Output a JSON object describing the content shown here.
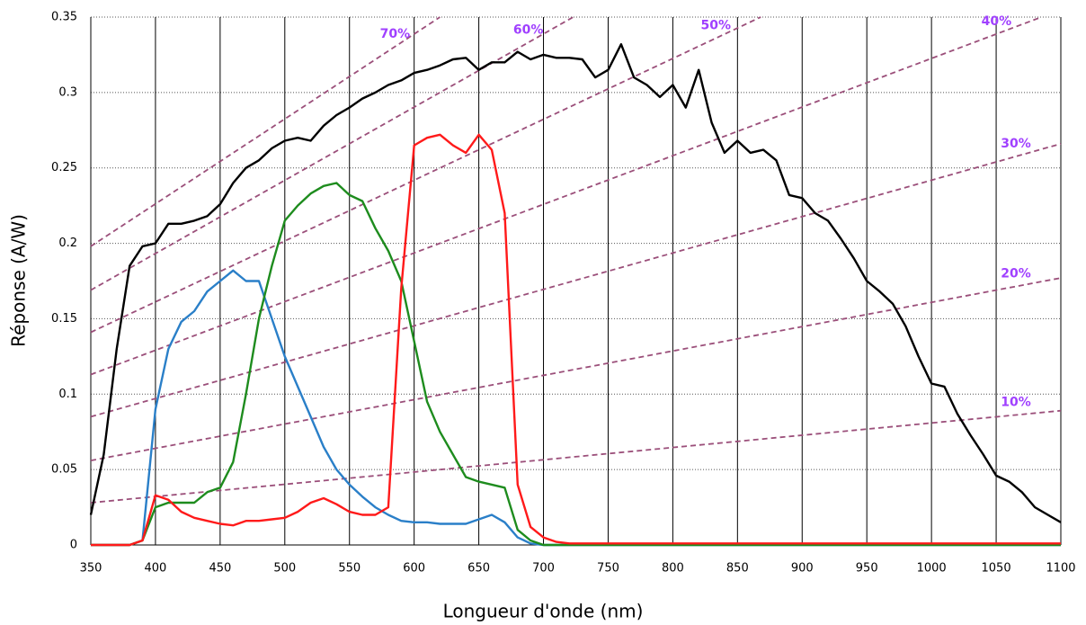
{
  "chart_data": {
    "type": "line",
    "x_label": "Longueur d'onde (nm)",
    "y_label": "Réponse (A/W)",
    "x": [
      350,
      360,
      370,
      380,
      390,
      400,
      410,
      420,
      430,
      440,
      450,
      460,
      470,
      480,
      490,
      500,
      510,
      520,
      530,
      540,
      550,
      560,
      570,
      580,
      590,
      600,
      610,
      620,
      630,
      640,
      650,
      660,
      670,
      680,
      690,
      700,
      710,
      720,
      730,
      740,
      750,
      760,
      770,
      780,
      790,
      800,
      810,
      820,
      830,
      840,
      850,
      860,
      870,
      880,
      890,
      900,
      910,
      920,
      930,
      940,
      950,
      960,
      970,
      980,
      990,
      1000,
      1010,
      1020,
      1030,
      1040,
      1050,
      1060,
      1070,
      1080,
      1090,
      1100
    ],
    "series": [
      {
        "color": "#000000",
        "values": [
          0.02,
          0.06,
          0.13,
          0.185,
          0.198,
          0.2,
          0.213,
          0.213,
          0.215,
          0.218,
          0.226,
          0.24,
          0.25,
          0.255,
          0.263,
          0.268,
          0.27,
          0.268,
          0.278,
          0.285,
          0.29,
          0.296,
          0.3,
          0.305,
          0.308,
          0.313,
          0.315,
          0.318,
          0.322,
          0.323,
          0.315,
          0.32,
          0.32,
          0.327,
          0.322,
          0.325,
          0.323,
          0.323,
          0.322,
          0.31,
          0.315,
          0.332,
          0.31,
          0.305,
          0.297,
          0.305,
          0.29,
          0.315,
          0.28,
          0.26,
          0.268,
          0.26,
          0.262,
          0.255,
          0.232,
          0.23,
          0.22,
          0.215,
          0.203,
          0.19,
          0.175,
          0.168,
          0.16,
          0.145,
          0.125,
          0.107,
          0.105,
          0.087,
          0.073,
          0.06,
          0.046,
          0.042,
          0.035,
          0.025,
          0.02,
          0.015
        ]
      },
      {
        "color": "#2a7fc8",
        "values": [
          0,
          0,
          0,
          0,
          0.003,
          0.09,
          0.13,
          0.148,
          0.155,
          0.168,
          0.175,
          0.182,
          0.175,
          0.175,
          0.15,
          0.125,
          0.105,
          0.085,
          0.065,
          0.05,
          0.04,
          0.032,
          0.025,
          0.02,
          0.016,
          0.015,
          0.015,
          0.014,
          0.014,
          0.014,
          0.017,
          0.02,
          0.015,
          0.005,
          0.001,
          0,
          0,
          0,
          0,
          0,
          0,
          0,
          0,
          0,
          0,
          0,
          0,
          0,
          0,
          0,
          0,
          0,
          0,
          0,
          0,
          0,
          0,
          0,
          0,
          0,
          0,
          0,
          0,
          0,
          0,
          0,
          0,
          0,
          0,
          0,
          0,
          0,
          0,
          0,
          0,
          0
        ]
      },
      {
        "color": "#1e8c1e",
        "values": [
          0,
          0,
          0,
          0,
          0.003,
          0.025,
          0.028,
          0.028,
          0.028,
          0.035,
          0.038,
          0.055,
          0.1,
          0.15,
          0.185,
          0.215,
          0.225,
          0.233,
          0.238,
          0.24,
          0.232,
          0.228,
          0.21,
          0.195,
          0.175,
          0.135,
          0.095,
          0.075,
          0.06,
          0.045,
          0.042,
          0.04,
          0.038,
          0.01,
          0.003,
          0,
          0,
          0,
          0,
          0,
          0,
          0,
          0,
          0,
          0,
          0,
          0,
          0,
          0,
          0,
          0,
          0,
          0,
          0,
          0,
          0,
          0,
          0,
          0,
          0,
          0,
          0,
          0,
          0,
          0,
          0,
          0,
          0,
          0,
          0,
          0,
          0,
          0,
          0,
          0,
          0
        ]
      },
      {
        "color": "#ff1a1a",
        "values": [
          0,
          0,
          0,
          0,
          0.003,
          0.033,
          0.03,
          0.022,
          0.018,
          0.016,
          0.014,
          0.013,
          0.016,
          0.016,
          0.017,
          0.018,
          0.022,
          0.028,
          0.031,
          0.027,
          0.022,
          0.02,
          0.02,
          0.025,
          0.17,
          0.265,
          0.27,
          0.272,
          0.265,
          0.26,
          0.272,
          0.262,
          0.22,
          0.04,
          0.012,
          0.005,
          0.002,
          0.001,
          0.001,
          0.001,
          0.001,
          0.001,
          0.001,
          0.001,
          0.001,
          0.001,
          0.001,
          0.001,
          0.001,
          0.001,
          0.001,
          0.001,
          0.001,
          0.001,
          0.001,
          0.001,
          0.001,
          0.001,
          0.001,
          0.001,
          0.001,
          0.001,
          0.001,
          0.001,
          0.001,
          0.001,
          0.001,
          0.001,
          0.001,
          0.001,
          0.001,
          0.001,
          0.001,
          0.001,
          0.001,
          0.001
        ]
      },
      {
        "name": "70%",
        "style": "dashed",
        "color": "#9b4f7a",
        "label_color": "#a040ff",
        "x": [
          350,
          620
        ],
        "values": [
          0.198,
          0.35
        ]
      },
      {
        "name": "60%",
        "style": "dashed",
        "color": "#9b4f7a",
        "label_color": "#a040ff",
        "x": [
          350,
          723
        ],
        "values": [
          0.169,
          0.35
        ]
      },
      {
        "name": "50%",
        "style": "dashed",
        "color": "#9b4f7a",
        "label_color": "#a040ff",
        "x": [
          350,
          868
        ],
        "values": [
          0.141,
          0.35
        ]
      },
      {
        "name": "40%",
        "style": "dashed",
        "color": "#9b4f7a",
        "label_color": "#a040ff",
        "x": [
          350,
          1085
        ],
        "values": [
          0.113,
          0.35
        ]
      },
      {
        "name": "30%",
        "style": "dashed",
        "color": "#9b4f7a",
        "label_color": "#a040ff",
        "x": [
          350,
          1100
        ],
        "values": [
          0.085,
          0.266
        ]
      },
      {
        "name": "20%",
        "style": "dashed",
        "color": "#9b4f7a",
        "label_color": "#a040ff",
        "x": [
          350,
          1100
        ],
        "values": [
          0.056,
          0.177
        ]
      },
      {
        "name": "10%",
        "style": "dashed",
        "color": "#9b4f7a",
        "label_color": "#a040ff",
        "x": [
          350,
          1100
        ],
        "values": [
          0.028,
          0.089
        ]
      }
    ],
    "xlim": [
      350,
      1100
    ],
    "xticks": [
      350,
      400,
      450,
      500,
      550,
      600,
      650,
      700,
      750,
      800,
      850,
      900,
      950,
      1000,
      1050,
      1100
    ],
    "ylim": [
      0,
      0.35
    ],
    "yticks": [
      0,
      0.05,
      0.1,
      0.15,
      0.2,
      0.25,
      0.3,
      0.35
    ],
    "grid": true
  }
}
